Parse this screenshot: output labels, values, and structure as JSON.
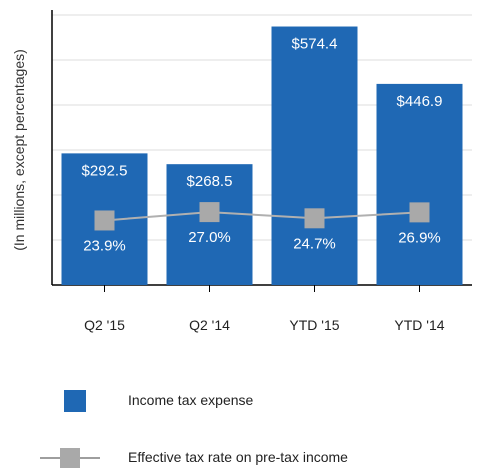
{
  "chart_data": {
    "type": "bar",
    "categories": [
      "Q2 '15",
      "Q2 '14",
      "YTD '15",
      "YTD '14"
    ],
    "ylabel": "(In millions, except percentages)",
    "ylim": [
      0,
      600
    ],
    "grid": true,
    "legend_position": "bottom",
    "series": [
      {
        "name": "Income tax expense",
        "type": "bar",
        "values": [
          292.5,
          268.5,
          574.4,
          446.9
        ],
        "labels": [
          "$292.5",
          "$268.5",
          "$574.4",
          "$446.9"
        ],
        "color": "#1f68b4"
      },
      {
        "name": "Effective tax rate on pre-tax income",
        "type": "line",
        "values": [
          23.9,
          27.0,
          24.7,
          26.9
        ],
        "labels": [
          "23.9%",
          "27.0%",
          "24.7%",
          "26.9%"
        ],
        "color": "#a9a9a9",
        "ylim": [
          0,
          100
        ]
      }
    ]
  },
  "legend": {
    "bar_label": "Income tax expense",
    "line_label": "Effective tax rate on pre-tax income"
  }
}
